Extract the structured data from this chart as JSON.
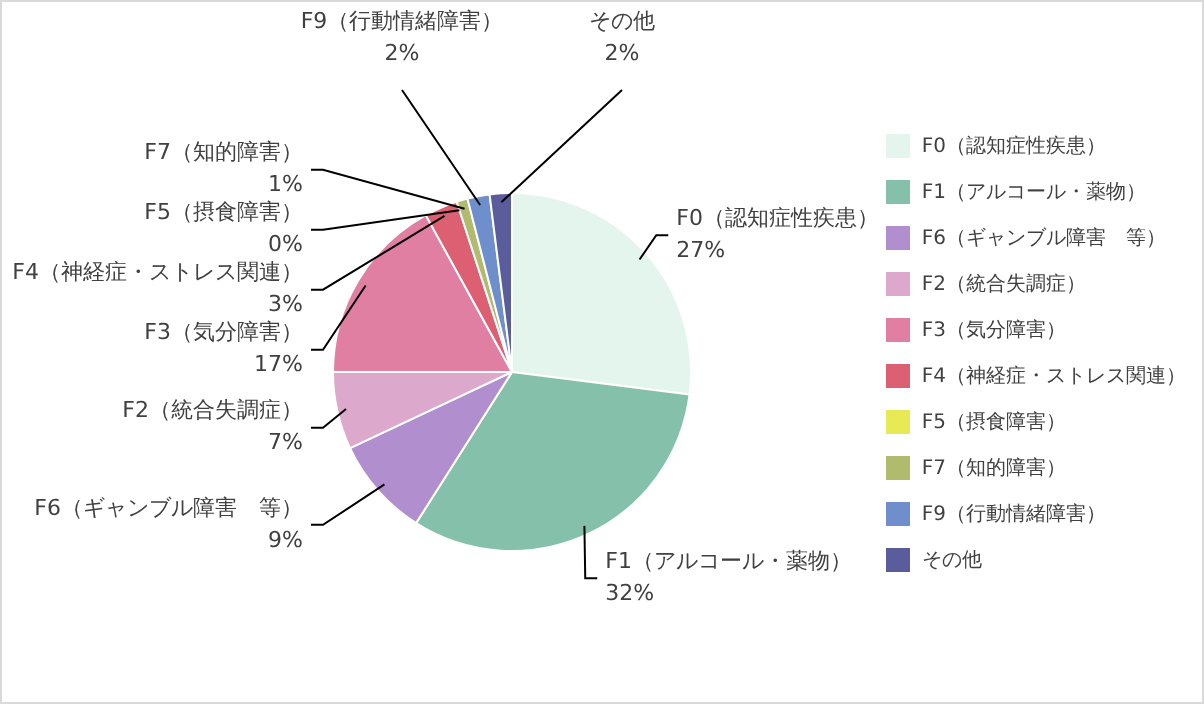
{
  "chart_data": {
    "type": "pie",
    "categories": [
      "F0（認知症性疾患）",
      "F1（アルコール・薬物）",
      "F6（ギャンブル障害　等）",
      "F2（統合失調症）",
      "F3（気分障害）",
      "F4（神経症・ストレス関連）",
      "F5（摂食障害）",
      "F7（知的障害）",
      "F9（行動情緒障害）",
      "その他"
    ],
    "values": [
      27,
      32,
      9,
      7,
      17,
      3,
      0,
      1,
      2,
      2
    ],
    "value_labels": [
      "27%",
      "32%",
      "9%",
      "7%",
      "17%",
      "3%",
      "0%",
      "1%",
      "2%",
      "2%"
    ],
    "colors": [
      "#e3f5ec",
      "#85c0aa",
      "#b18fcf",
      "#dca8cc",
      "#e07fa2",
      "#dd6072",
      "#e8ea55",
      "#b0bb6e",
      "#6e8fcc",
      "#5b5c9c"
    ],
    "legend": "right"
  }
}
